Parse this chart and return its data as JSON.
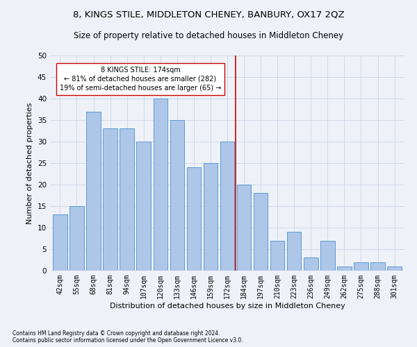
{
  "title": "8, KINGS STILE, MIDDLETON CHENEY, BANBURY, OX17 2QZ",
  "subtitle": "Size of property relative to detached houses in Middleton Cheney",
  "xlabel": "Distribution of detached houses by size in Middleton Cheney",
  "ylabel": "Number of detached properties",
  "footer1": "Contains HM Land Registry data © Crown copyright and database right 2024.",
  "footer2": "Contains public sector information licensed under the Open Government Licence v3.0.",
  "categories": [
    "42sqm",
    "55sqm",
    "68sqm",
    "81sqm",
    "94sqm",
    "107sqm",
    "120sqm",
    "133sqm",
    "146sqm",
    "159sqm",
    "172sqm",
    "184sqm",
    "197sqm",
    "210sqm",
    "223sqm",
    "236sqm",
    "249sqm",
    "262sqm",
    "275sqm",
    "288sqm",
    "301sqm"
  ],
  "values": [
    13,
    15,
    37,
    33,
    33,
    30,
    40,
    35,
    24,
    25,
    30,
    20,
    18,
    7,
    9,
    3,
    7,
    1,
    2,
    2,
    1
  ],
  "bar_color": "#aec6e8",
  "bar_edgecolor": "#5b9bd5",
  "vline_x": 10.5,
  "vline_color": "#cc0000",
  "annotation_text": "8 KINGS STILE: 174sqm\n← 81% of detached houses are smaller (282)\n19% of semi-detached houses are larger (65) →",
  "annotation_box_color": "#ffffff",
  "annotation_box_edgecolor": "#cc0000",
  "ylim": [
    0,
    50
  ],
  "yticks": [
    0,
    5,
    10,
    15,
    20,
    25,
    30,
    35,
    40,
    45,
    50
  ],
  "grid_color": "#d0d8e8",
  "background_color": "#eef2f8",
  "title_fontsize": 9.5,
  "subtitle_fontsize": 8.5,
  "xlabel_fontsize": 8,
  "ylabel_fontsize": 8,
  "tick_fontsize": 7,
  "annotation_fontsize": 7,
  "footer_fontsize": 5.5
}
